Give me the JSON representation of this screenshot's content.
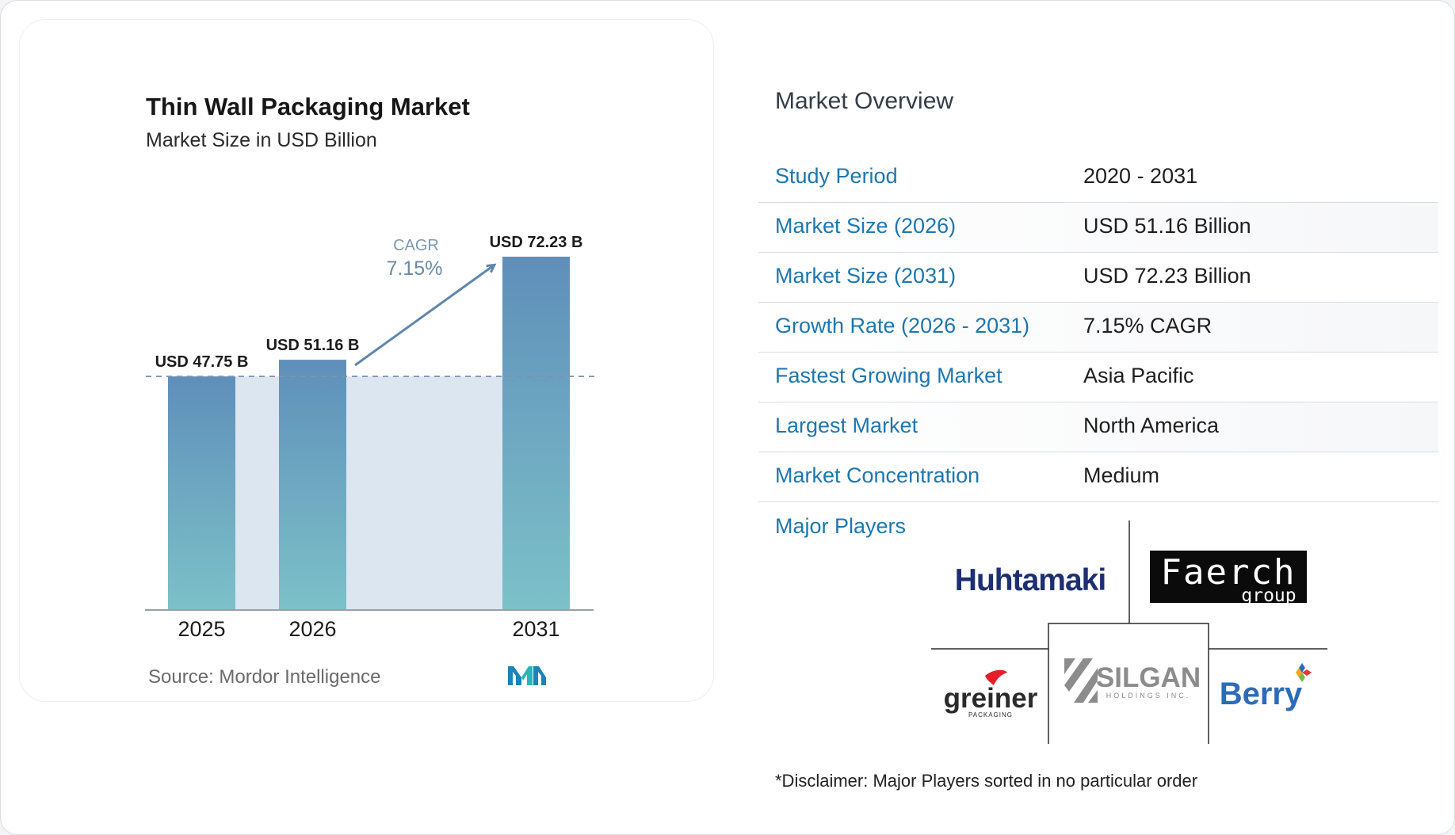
{
  "chart": {
    "title": "Thin Wall Packaging Market",
    "subtitle": "Market Size in USD Billion",
    "source": "Source:  Mordor Intelligence",
    "cagr_label": "CAGR",
    "cagr_value": "7.15%"
  },
  "chart_data": {
    "type": "bar",
    "title": "Thin Wall Packaging Market",
    "subtitle": "Market Size in USD Billion",
    "categories": [
      "2025",
      "2026",
      "2031"
    ],
    "values": [
      47.75,
      51.16,
      72.23
    ],
    "data_labels": [
      "USD 47.75 B",
      "USD 51.16 B",
      "USD 72.23 B"
    ],
    "annotation": "CAGR 7.15%",
    "ylim": [
      0,
      72.23
    ],
    "grid": false,
    "colors": {
      "bar_top": "#5f8fba",
      "bar_bottom": "#7cc1c8",
      "band": "#dce6f1",
      "arrow": "#5f86ab"
    }
  },
  "overview": {
    "title": "Market Overview",
    "rows": [
      {
        "label": "Study Period",
        "value": "2020 - 2031"
      },
      {
        "label": "Market Size (2026)",
        "value": "USD 51.16 Billion"
      },
      {
        "label": "Market Size (2031)",
        "value": "USD 72.23 Billion"
      },
      {
        "label": "Growth Rate (2026 - 2031)",
        "value": "7.15% CAGR"
      },
      {
        "label": "Fastest Growing Market",
        "value": "Asia Pacific"
      },
      {
        "label": "Largest Market",
        "value": "North America"
      },
      {
        "label": "Market Concentration",
        "value": "Medium"
      }
    ]
  },
  "players": {
    "label": "Major Players",
    "logos": {
      "huhtamaki": "Huhtamaki",
      "faerch_1": "Faerch",
      "faerch_2": "group",
      "greiner": "greiner",
      "greiner_sub": "PACKAGING",
      "silgan": "SILGAN",
      "silgan_sub": "HOLDINGS INC.",
      "berry": "Berry"
    }
  },
  "disclaimer": "*Disclaimer: Major Players sorted in no particular order"
}
